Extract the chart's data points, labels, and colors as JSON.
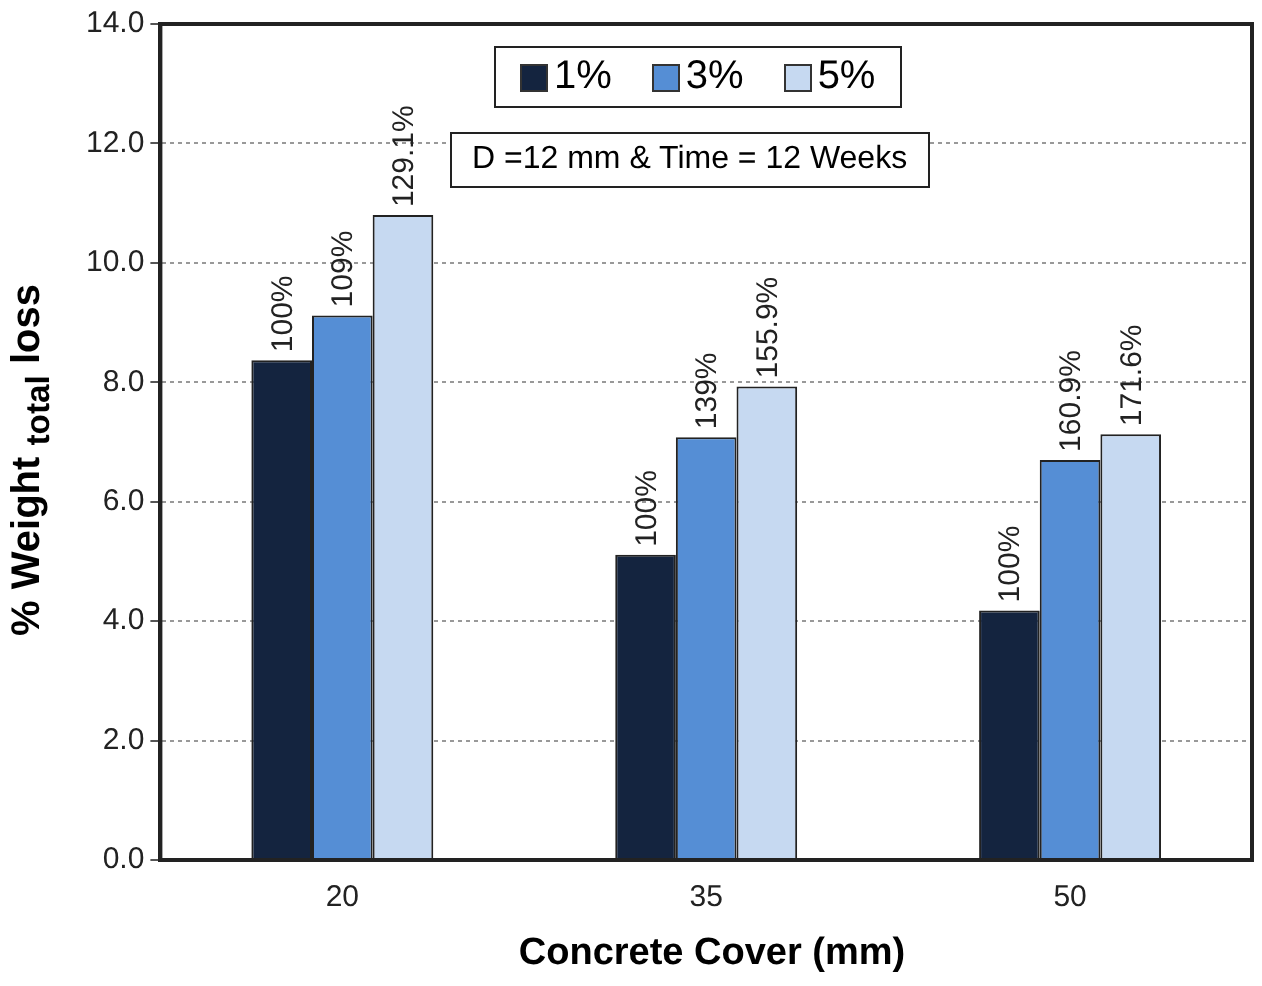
{
  "chart_data": {
    "type": "bar",
    "xlabel": "Concrete Cover (mm)",
    "ylabel": "% Weight $_{total}$ loss",
    "categories": [
      "20",
      "35",
      "50"
    ],
    "series": [
      {
        "name": "1%",
        "color": "#14243f",
        "values": [
          8.37,
          5.11,
          4.18
        ]
      },
      {
        "name": "3%",
        "color": "#558ed5",
        "values": [
          9.12,
          7.08,
          6.7
        ]
      },
      {
        "name": "5%",
        "color": "#c6d9f1",
        "values": [
          10.8,
          7.93,
          7.13
        ]
      }
    ],
    "ylim": [
      0,
      14
    ],
    "yticks": [
      {
        "value": 0,
        "label": "0.0"
      },
      {
        "value": 2,
        "label": "2.0"
      },
      {
        "value": 4,
        "label": "4.0"
      },
      {
        "value": 6,
        "label": "6.0"
      },
      {
        "value": 8,
        "label": "8.0"
      },
      {
        "value": 10,
        "label": "10.0"
      },
      {
        "value": 12,
        "label": "12.0"
      },
      {
        "value": 14,
        "label": "14.0"
      }
    ],
    "grid": "y",
    "legend": "top",
    "annotations": [
      "D =12 mm & Time = 12 Weeks",
      "100%",
      "109%",
      "129.1%",
      "100%",
      "139%",
      "155.9%",
      "100%",
      "160.9%",
      "171.6%"
    ]
  }
}
